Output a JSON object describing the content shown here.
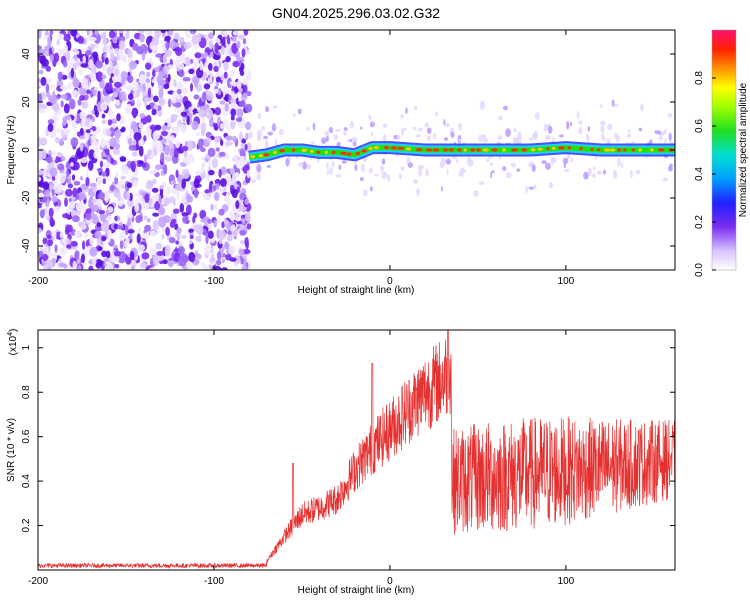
{
  "title": "GN04.2025.296.03.02.G32",
  "colors": {
    "spectrogram_point": "#7a2cf0",
    "snr_line": "#e53030",
    "ridge_outer": "#1fd0ff",
    "ridge_mid": "#22e000",
    "ridge_core": "#ff2a10"
  },
  "chart_data": [
    {
      "type": "heatmap",
      "title": "GN04.2025.296.03.02.G32",
      "xlabel": "Height of straight line (km)",
      "ylabel": "Frequency (Hz)",
      "xlim": [
        -200,
        162
      ],
      "ylim": [
        -50,
        50
      ],
      "xticks": [
        -200,
        -100,
        0,
        100
      ],
      "yticks": [
        -40,
        -20,
        0,
        20,
        40
      ],
      "noise_region_x": [
        -200,
        -80
      ],
      "signal_ridge": {
        "x": [
          -80,
          -70,
          -60,
          -50,
          -40,
          -30,
          -20,
          -10,
          0,
          20,
          40,
          60,
          80,
          100,
          120,
          140,
          162
        ],
        "frequency": [
          -3,
          -2,
          0,
          0,
          -1,
          -1,
          -2,
          1,
          1,
          0,
          0,
          0,
          0,
          1,
          0,
          0,
          0
        ]
      },
      "colorbar": {
        "label": "Normalized spectral amplitude",
        "range": [
          0,
          1
        ],
        "ticks": [
          0.0,
          0.2,
          0.4,
          0.6,
          0.8
        ]
      }
    },
    {
      "type": "line",
      "xlabel": "Height of straight line (km)",
      "ylabel": "SNR (10 * v/v)",
      "multiplier_label": "(x10",
      "multiplier_exp": "4",
      "multiplier_close": ")",
      "xlim": [
        -200,
        162
      ],
      "ylim": [
        0,
        1.08
      ],
      "xticks": [
        -200,
        -100,
        0,
        100
      ],
      "yticks": [
        0.2,
        0.4,
        0.6,
        0.8,
        1.0
      ],
      "ytick_labels": [
        "0.2",
        "0.4",
        "0.6",
        "0.8",
        "1"
      ],
      "series": [
        {
          "name": "SNR",
          "baseline_x": [
            -200,
            -70
          ],
          "baseline_value": 0.02,
          "rise_x": [
            -70,
            -60,
            -50,
            -40,
            -30,
            -20,
            -10,
            0,
            10,
            20,
            30,
            34
          ],
          "rise_mean": [
            0.04,
            0.15,
            0.25,
            0.28,
            0.32,
            0.45,
            0.55,
            0.63,
            0.72,
            0.8,
            0.86,
            0.9
          ],
          "rise_peaks": [
            {
              "x": -55,
              "y": 0.48
            },
            {
              "x": -10,
              "y": 0.93
            },
            {
              "x": 33,
              "y": 1.08
            }
          ],
          "drop_x": 35,
          "post_x": [
            35,
            60,
            90,
            120,
            162
          ],
          "post_mean": [
            0.4,
            0.42,
            0.44,
            0.46,
            0.5
          ],
          "post_spread": [
            0.3,
            0.32,
            0.32,
            0.28,
            0.22
          ]
        }
      ]
    }
  ]
}
